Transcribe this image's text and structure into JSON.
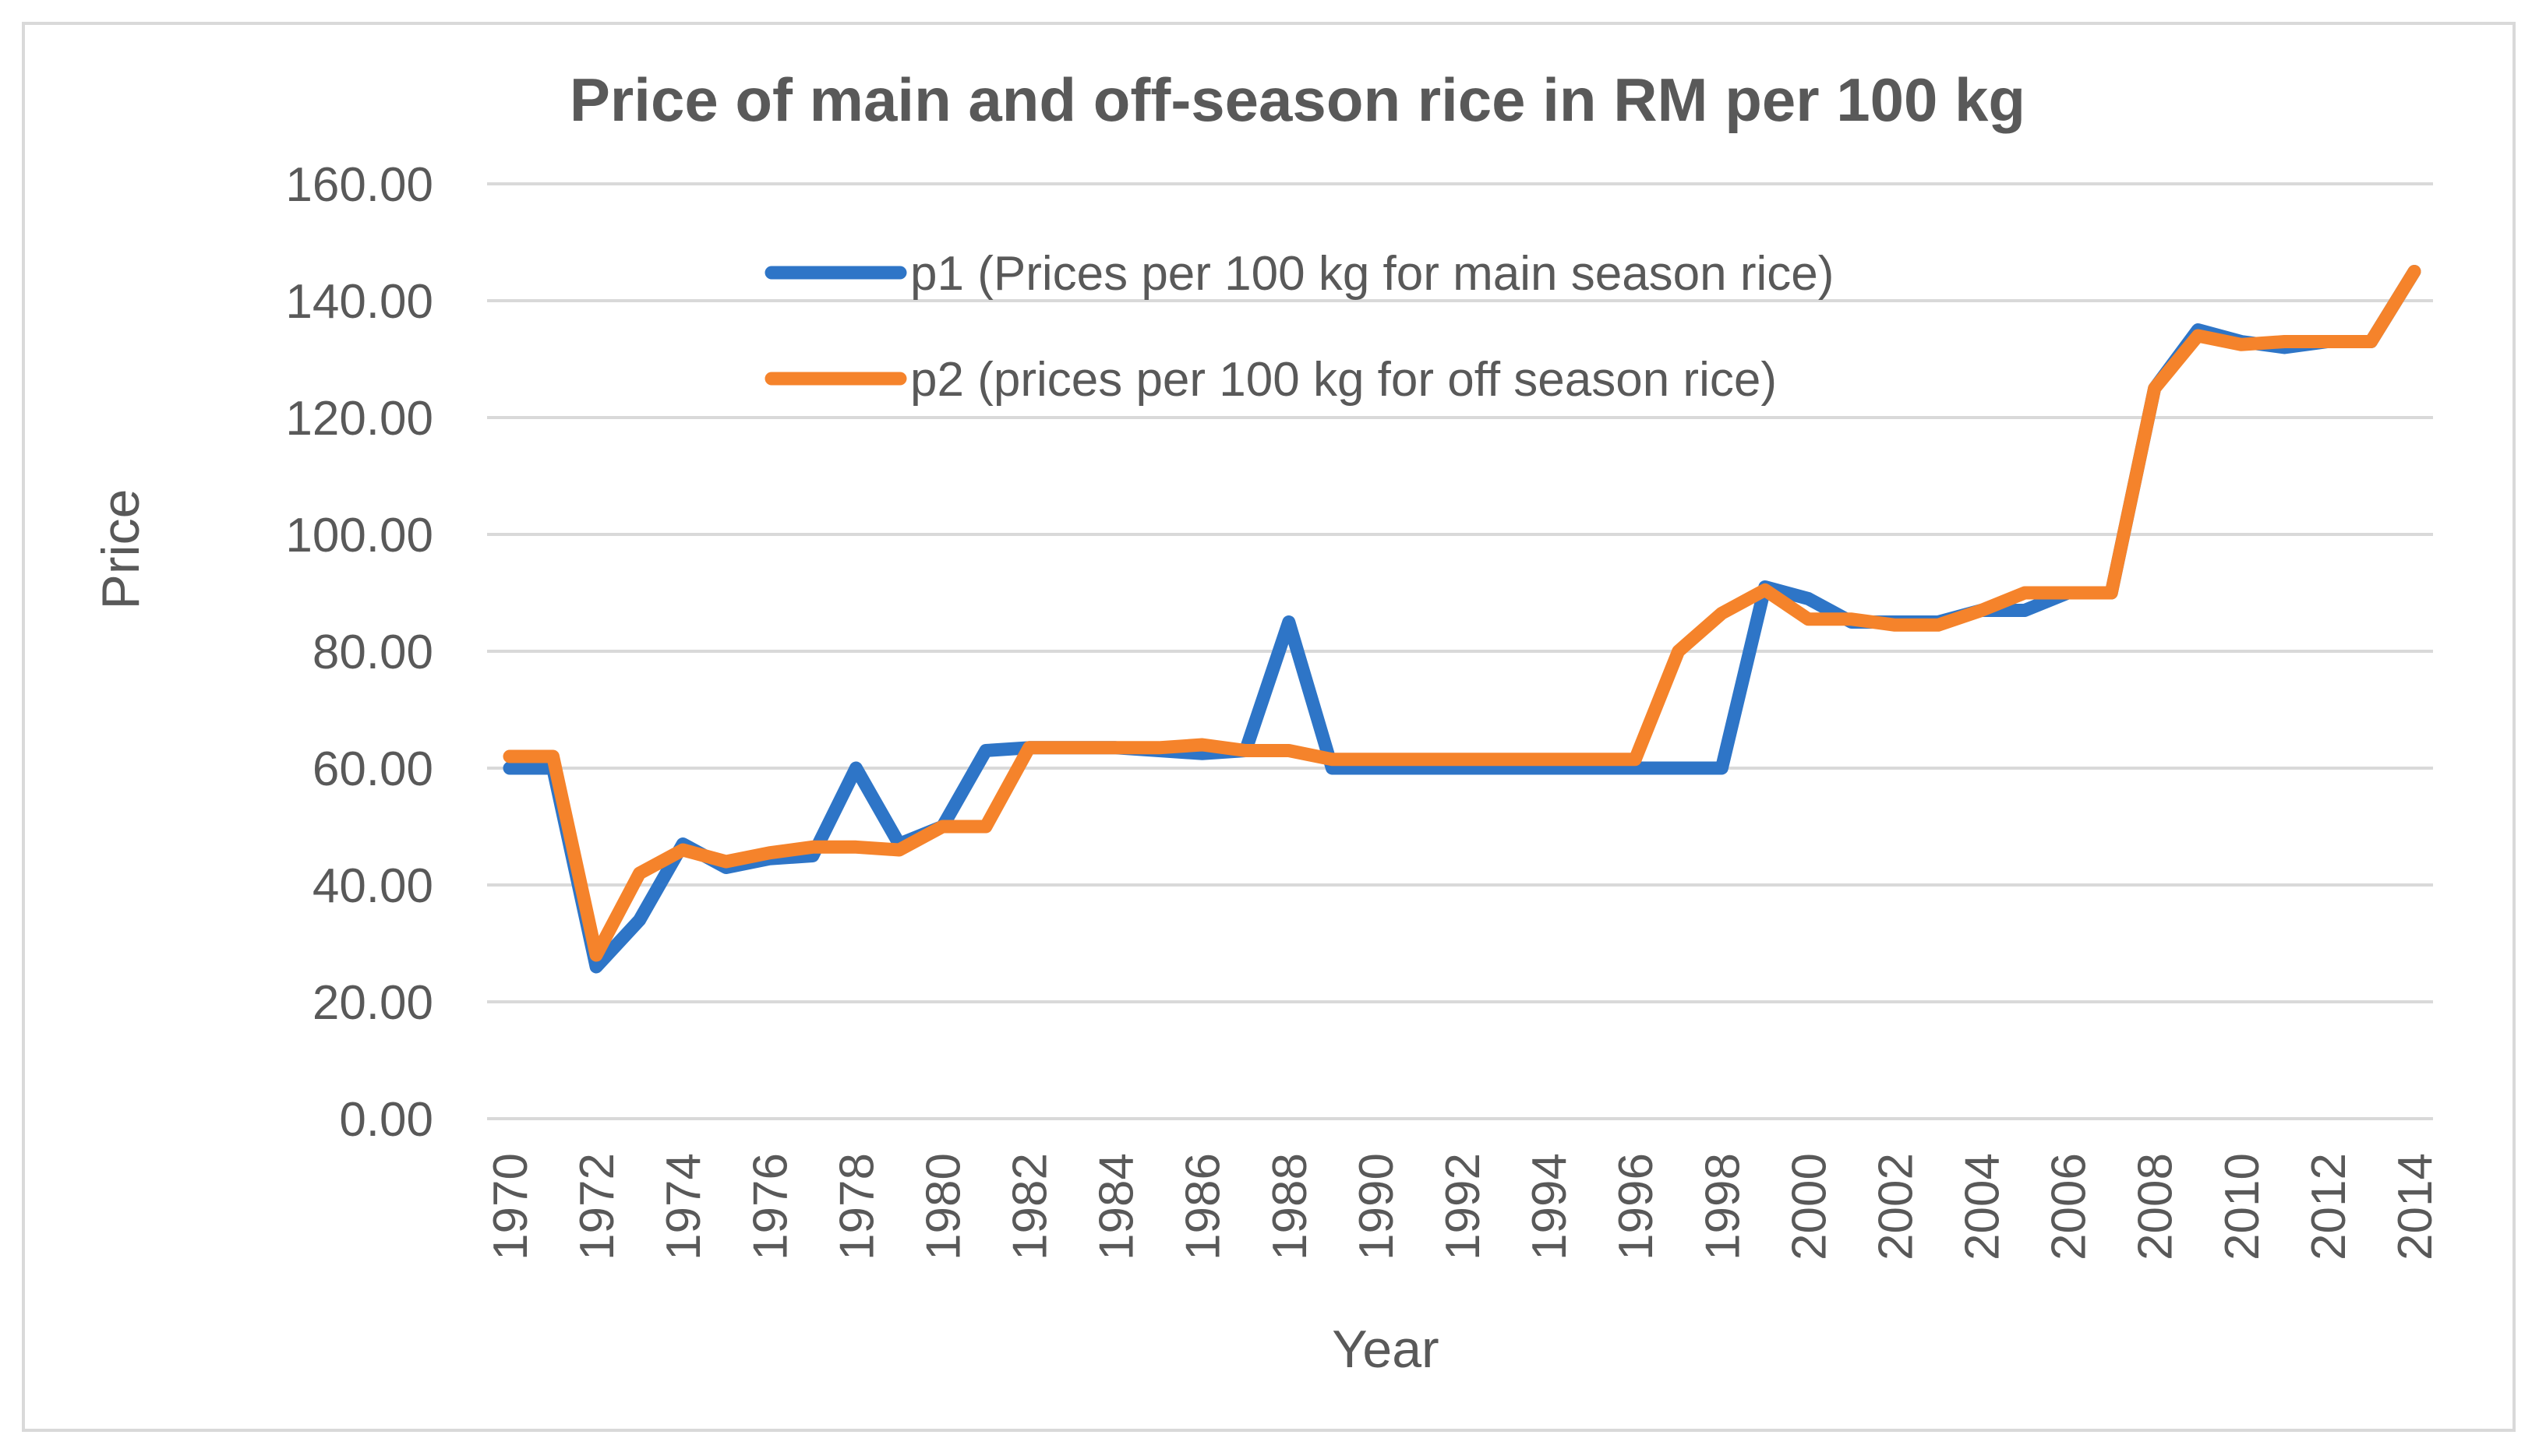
{
  "chart_data": {
    "type": "line",
    "title": "Price of main and off-season rice in RM per 100 kg",
    "xlabel": "Year",
    "ylabel": "Price",
    "ylim": [
      0,
      160
    ],
    "y_ticks": [
      "0.00",
      "20.00",
      "40.00",
      "60.00",
      "80.00",
      "100.00",
      "120.00",
      "140.00",
      "160.00"
    ],
    "y_tick_values": [
      0,
      20,
      40,
      60,
      80,
      100,
      120,
      140,
      160
    ],
    "x": [
      1970,
      1971,
      1972,
      1973,
      1974,
      1975,
      1976,
      1977,
      1978,
      1979,
      1980,
      1981,
      1982,
      1983,
      1984,
      1985,
      1986,
      1987,
      1988,
      1989,
      1990,
      1991,
      1992,
      1993,
      1994,
      1995,
      1996,
      1997,
      1998,
      1999,
      2000,
      2001,
      2002,
      2003,
      2004,
      2005,
      2006,
      2007,
      2008,
      2009,
      2010,
      2011,
      2012,
      2013,
      2014
    ],
    "x_tick_labels": [
      "1970",
      "1972",
      "1974",
      "1976",
      "1978",
      "1980",
      "1982",
      "1984",
      "1986",
      "1988",
      "1990",
      "1992",
      "1994",
      "1996",
      "1998",
      "2000",
      "2002",
      "2004",
      "2006",
      "2008",
      "2010",
      "2012",
      "2014"
    ],
    "grid": true,
    "legend_position": "top-center",
    "series": [
      {
        "name": "p1 (Prices per 100 kg for main season rice)",
        "color": "#2e75c7",
        "values": [
          60,
          60,
          26,
          34,
          47,
          43,
          44.5,
          45,
          60,
          47,
          50,
          63,
          63.5,
          63.5,
          63.5,
          63,
          62.5,
          63,
          85,
          60,
          60,
          60,
          60,
          60,
          60,
          60,
          60,
          60,
          60,
          91,
          89,
          85,
          85,
          85,
          87,
          87,
          90,
          90,
          125,
          135,
          133,
          132,
          133,
          133,
          145
        ]
      },
      {
        "name": "p2 (prices per 100 kg for off season rice)",
        "color": "#f5832b",
        "values": [
          62,
          62,
          28,
          42,
          46,
          44,
          45.5,
          46.5,
          46.5,
          46,
          50,
          50,
          63.5,
          63.5,
          63.5,
          63.5,
          64,
          63,
          63,
          61.5,
          61.5,
          61.5,
          61.5,
          61.5,
          61.5,
          61.5,
          61.5,
          80,
          86.5,
          90.5,
          85.5,
          85.5,
          84.5,
          84.5,
          87,
          90,
          90,
          90,
          125,
          134,
          132.5,
          133,
          133,
          133,
          145
        ]
      }
    ]
  }
}
